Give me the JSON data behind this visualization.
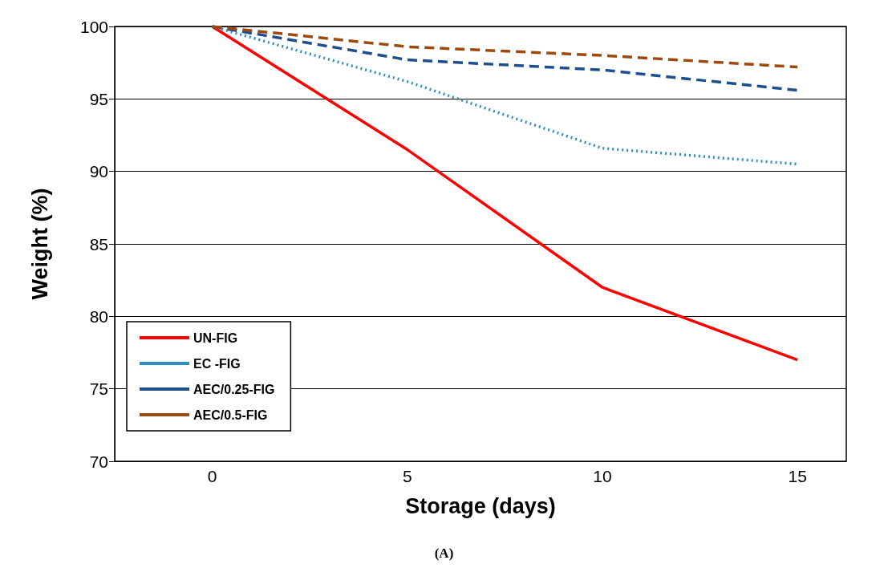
{
  "chart_data": {
    "type": "line",
    "xlabel": "Storage (days)",
    "ylabel": "Weight (%)",
    "x": [
      0,
      5,
      10,
      15
    ],
    "xlim": [
      -2.5,
      16.25
    ],
    "xticks": [
      0,
      5,
      10,
      15
    ],
    "ylim": [
      70,
      100
    ],
    "yticks": [
      70,
      75,
      80,
      85,
      90,
      95,
      100
    ],
    "grid": "y",
    "legend": "bottom left",
    "marker": "none",
    "annotations": [
      "(A)"
    ],
    "series": [
      {
        "name": "UN-FIG",
        "color": "#ff0000",
        "line_style": "solid",
        "values": [
          100,
          91.5,
          82,
          77
        ]
      },
      {
        "name": "EC -FIG",
        "color": "#2e8fc0",
        "line_style": "dotted",
        "values": [
          100,
          96.2,
          91.6,
          90.5
        ]
      },
      {
        "name": "AEC/0.25-FIG",
        "color": "#1f4e8c",
        "line_style": "dashed",
        "values": [
          100,
          97.7,
          97,
          95.6
        ]
      },
      {
        "name": "AEC/0.5-FIG",
        "color": "#9c4a0e",
        "line_style": "dashed",
        "values": [
          100,
          98.6,
          98,
          97.2
        ]
      }
    ]
  }
}
